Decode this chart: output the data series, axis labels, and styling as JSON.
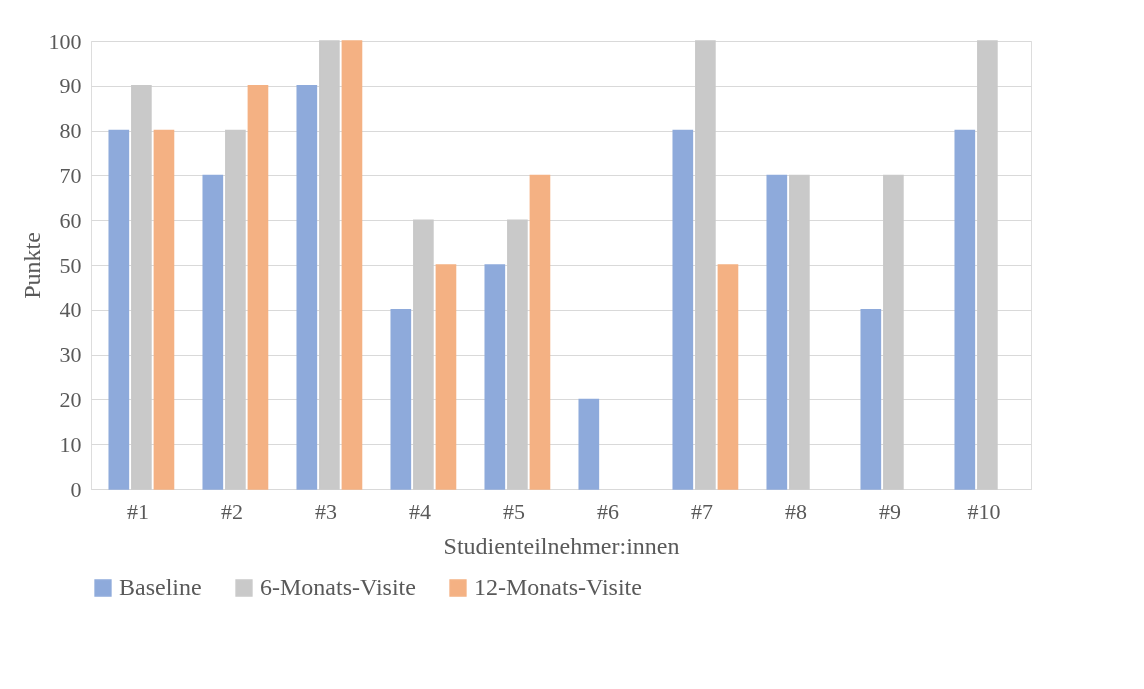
{
  "chart_data": {
    "type": "bar",
    "xlabel": "Studienteilnehmer:innen",
    "ylabel": "Punkte",
    "categories": [
      "#1",
      "#2",
      "#3",
      "#4",
      "#5",
      "#6",
      "#7",
      "#8",
      "#9",
      "#10"
    ],
    "series": [
      {
        "name": "Baseline",
        "color": "#8eaadb",
        "values": [
          80,
          70,
          90,
          40,
          50,
          20,
          80,
          70,
          40,
          80
        ]
      },
      {
        "name": "6-Monats-Visite",
        "color": "#c9c9c9",
        "values": [
          90,
          80,
          100,
          60,
          60,
          null,
          100,
          70,
          70,
          100
        ]
      },
      {
        "name": "12-Monats-Visite",
        "color": "#f4b183",
        "values": [
          80,
          90,
          100,
          50,
          70,
          null,
          50,
          null,
          null,
          null
        ]
      }
    ],
    "ylim": [
      0,
      100
    ],
    "yticks": [
      0,
      10,
      20,
      30,
      40,
      50,
      60,
      70,
      80,
      90,
      100
    ],
    "grid": "y",
    "legend": "bottom"
  }
}
